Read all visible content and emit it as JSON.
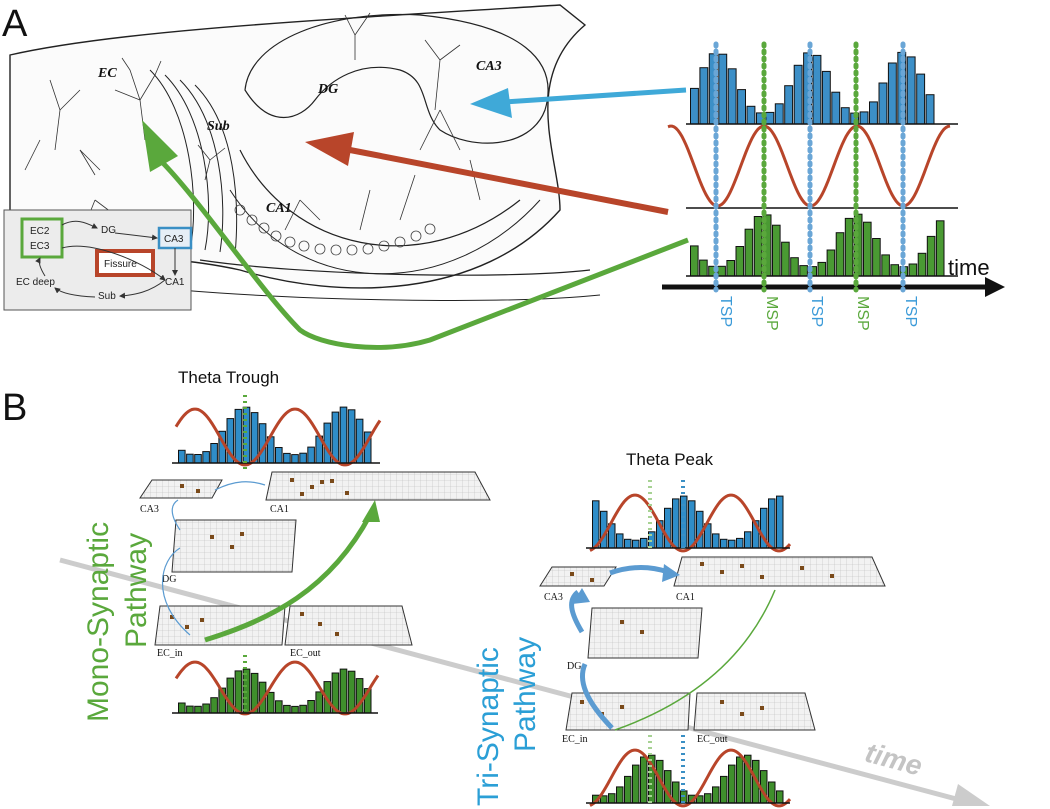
{
  "panel_a": {
    "label": "A",
    "regions": {
      "ec": "EC",
      "dg": "DG",
      "ca3": "CA3",
      "sub": "Sub",
      "ca1": "CA1"
    },
    "inset": {
      "ec2": "EC2",
      "ec3": "EC3",
      "dg": "DG",
      "ca3": "CA3",
      "fissure": "Fissure",
      "ca1": "CA1",
      "sub": "Sub",
      "ec_deep": "EC deep"
    },
    "time_label": "time",
    "phase_labels": [
      "TSP",
      "MSP",
      "TSP",
      "MSP",
      "TSP"
    ]
  },
  "panel_b": {
    "label": "B",
    "theta_trough": "Theta Trough",
    "theta_peak": "Theta Peak",
    "mono_line1": "Mono-Synaptic",
    "mono_line2": "Pathway",
    "tri_line1": "Tri-Synaptic",
    "tri_line2": "Pathway",
    "time_label": "time",
    "grid_labels": {
      "ca3": "CA3",
      "ca1": "CA1",
      "dg": "DG",
      "ec_in": "EC_in",
      "ec_out": "EC_out"
    }
  },
  "colors": {
    "blue": "#3a8fc4",
    "green": "#5aa83c",
    "red": "#b8452a",
    "fill_blue": "#3c8fc7",
    "fill_green": "#4a9a33",
    "gray": "#c8c8c8"
  }
}
